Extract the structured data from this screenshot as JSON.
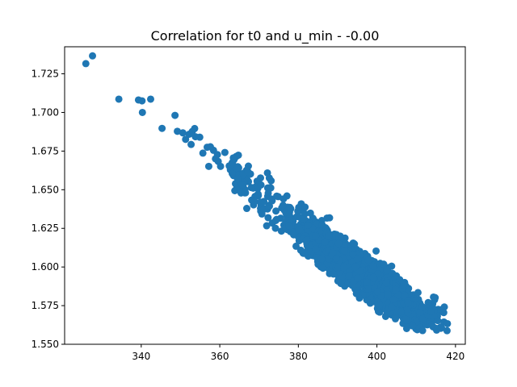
{
  "chart_data": {
    "type": "scatter",
    "title": "Correlation for t0 and u_min - -0.00",
    "xlabel": "",
    "ylabel": "",
    "xlim": [
      320.5,
      422.5
    ],
    "ylim": [
      1.55,
      1.7425
    ],
    "xticks": [
      340,
      360,
      380,
      400,
      420
    ],
    "xtick_labels": [
      "340",
      "360",
      "380",
      "400",
      "420"
    ],
    "yticks": [
      1.55,
      1.575,
      1.6,
      1.625,
      1.65,
      1.675,
      1.7,
      1.725
    ],
    "ytick_labels": [
      "1.550",
      "1.575",
      "1.600",
      "1.625",
      "1.650",
      "1.675",
      "1.700",
      "1.725"
    ],
    "grid": false,
    "legend": "none",
    "marker_color": "#1f77b4",
    "outliers": [
      [
        325.9,
        1.7316
      ],
      [
        327.6,
        1.7366
      ],
      [
        334.3,
        1.7086
      ],
      [
        339.3,
        1.7081
      ],
      [
        340.2,
        1.7075
      ],
      [
        340.3,
        1.7
      ],
      [
        342.4,
        1.7086
      ],
      [
        345.3,
        1.6897
      ],
      [
        348.6,
        1.6981
      ],
      [
        349.2,
        1.6878
      ],
      [
        350.6,
        1.6868
      ],
      [
        351.3,
        1.6826
      ],
      [
        352.2,
        1.6859
      ],
      [
        352.7,
        1.6793
      ],
      [
        353.8,
        1.6843
      ],
      [
        353.6,
        1.6896
      ],
      [
        353.0,
        1.6877
      ],
      [
        354.9,
        1.684
      ],
      [
        355.7,
        1.6737
      ],
      [
        356.8,
        1.6775
      ],
      [
        357.6,
        1.6778
      ],
      [
        358.4,
        1.6755
      ],
      [
        359.4,
        1.6727
      ],
      [
        357.2,
        1.6651
      ],
      [
        358.9,
        1.67
      ],
      [
        359.6,
        1.6683
      ],
      [
        360.2,
        1.6651
      ],
      [
        361.3,
        1.6741
      ],
      [
        362.7,
        1.6629
      ],
      [
        363.5,
        1.6591
      ],
      [
        364.6,
        1.6612
      ],
      [
        365.2,
        1.654
      ],
      [
        364.1,
        1.662
      ],
      [
        365.9,
        1.658
      ],
      [
        366.4,
        1.65
      ],
      [
        367.3,
        1.6552
      ],
      [
        368.6,
        1.6402
      ],
      [
        369.8,
        1.6462
      ],
      [
        362.4,
        1.6654
      ],
      [
        366.8,
        1.6626
      ]
    ],
    "band": {
      "x_range": [
        363.0,
        418.0
      ],
      "trend": [
        [
          363.0,
          1.662
        ],
        [
          380.0,
          1.6258
        ],
        [
          400.0,
          1.588
        ],
        [
          418.0,
          1.56
        ]
      ],
      "vertical_spread": 0.016,
      "point_count": 1400
    }
  }
}
